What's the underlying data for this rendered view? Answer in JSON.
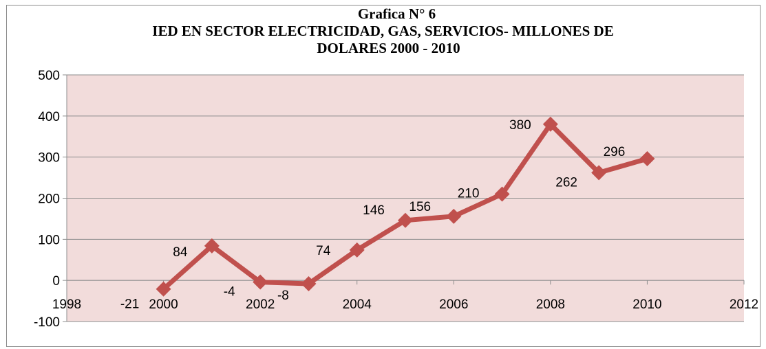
{
  "chart_data": {
    "type": "scatter",
    "title_lines": [
      "Grafica N° 6",
      "IED EN SECTOR  ELECTRICIDAD, GAS, SERVICIOS- MILLONES DE",
      "DOLARES 2000 - 2010"
    ],
    "xlabel": "",
    "ylabel": "",
    "x": [
      2000,
      2001,
      2002,
      2003,
      2004,
      2005,
      2006,
      2007,
      2008,
      2009,
      2010
    ],
    "y": [
      -21,
      84,
      -4,
      -8,
      74,
      146,
      156,
      210,
      380,
      262,
      296
    ],
    "data_labels": [
      "-21",
      "84",
      "-4",
      "-8",
      "74",
      "146",
      "156",
      "210",
      "380",
      "262",
      "296"
    ],
    "xlim": [
      1998,
      2012
    ],
    "ylim": [
      -100,
      500
    ],
    "x_ticks": [
      "1998",
      "2000",
      "2002",
      "2004",
      "2006",
      "2008",
      "2010",
      "2012"
    ],
    "y_ticks": [
      "500",
      "400",
      "300",
      "200",
      "100",
      "0",
      "-100"
    ],
    "grid": true,
    "legend": "none",
    "colors": {
      "series": "#c0504d",
      "plot_background": "#f2dcdb",
      "gridline": "#8c8c8c"
    }
  }
}
